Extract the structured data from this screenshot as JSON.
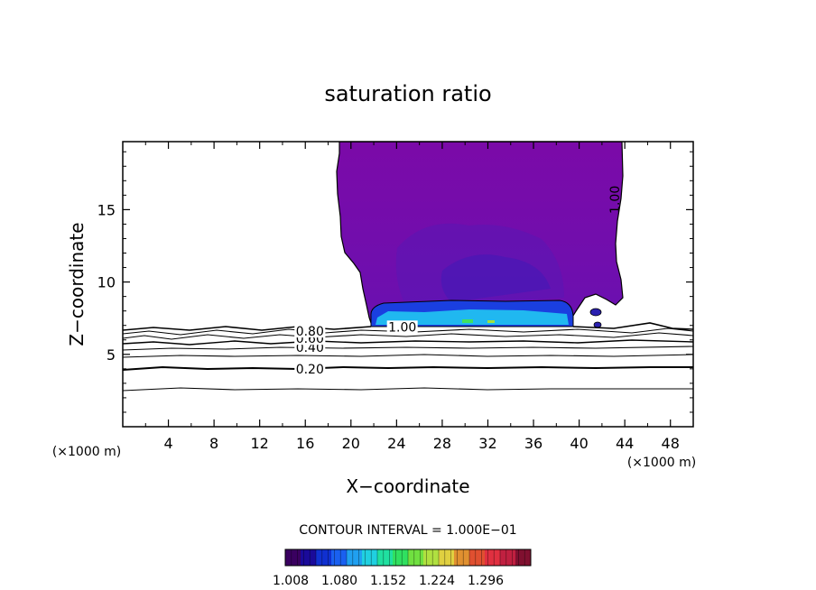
{
  "chart_data": {
    "type": "contour",
    "title": "saturation ratio",
    "xlabel": "X−coordinate",
    "ylabel": "Z−coordinate",
    "x_unit_left": "(×1000 m)",
    "x_unit_right": "(×1000 m)",
    "xlim": [
      0,
      50
    ],
    "ylim": [
      0,
      19.7
    ],
    "x_ticks": [
      4,
      8,
      12,
      16,
      20,
      24,
      28,
      32,
      36,
      40,
      44,
      48
    ],
    "y_ticks": [
      5,
      10,
      15
    ],
    "contour_interval_text": "CONTOUR INTERVAL = 1.000E−01",
    "line_contours": [
      {
        "label": "0.20",
        "x": 16.4,
        "z": 4.0
      },
      {
        "label": "0.40",
        "x": 16.4,
        "z": 5.5
      },
      {
        "label": "0.60",
        "x": 16.4,
        "z": 6.1
      },
      {
        "label": "0.80",
        "x": 16.4,
        "z": 6.6
      },
      {
        "label": "1.00",
        "x": 24.5,
        "z": 6.9
      },
      {
        "label": "1.00",
        "x": 43.5,
        "z": 16.0
      }
    ],
    "colorbar": {
      "tick_labels": [
        "1.008",
        "1.080",
        "1.152",
        "1.224",
        "1.296"
      ],
      "colors": [
        "#3a0060",
        "#1a0a9a",
        "#1030d0",
        "#1a60f0",
        "#20a0f0",
        "#20d0e0",
        "#20e0a0",
        "#30e060",
        "#70e040",
        "#b0e040",
        "#e0d040",
        "#e09030",
        "#e05030",
        "#e03040",
        "#c02040",
        "#801030"
      ]
    }
  }
}
